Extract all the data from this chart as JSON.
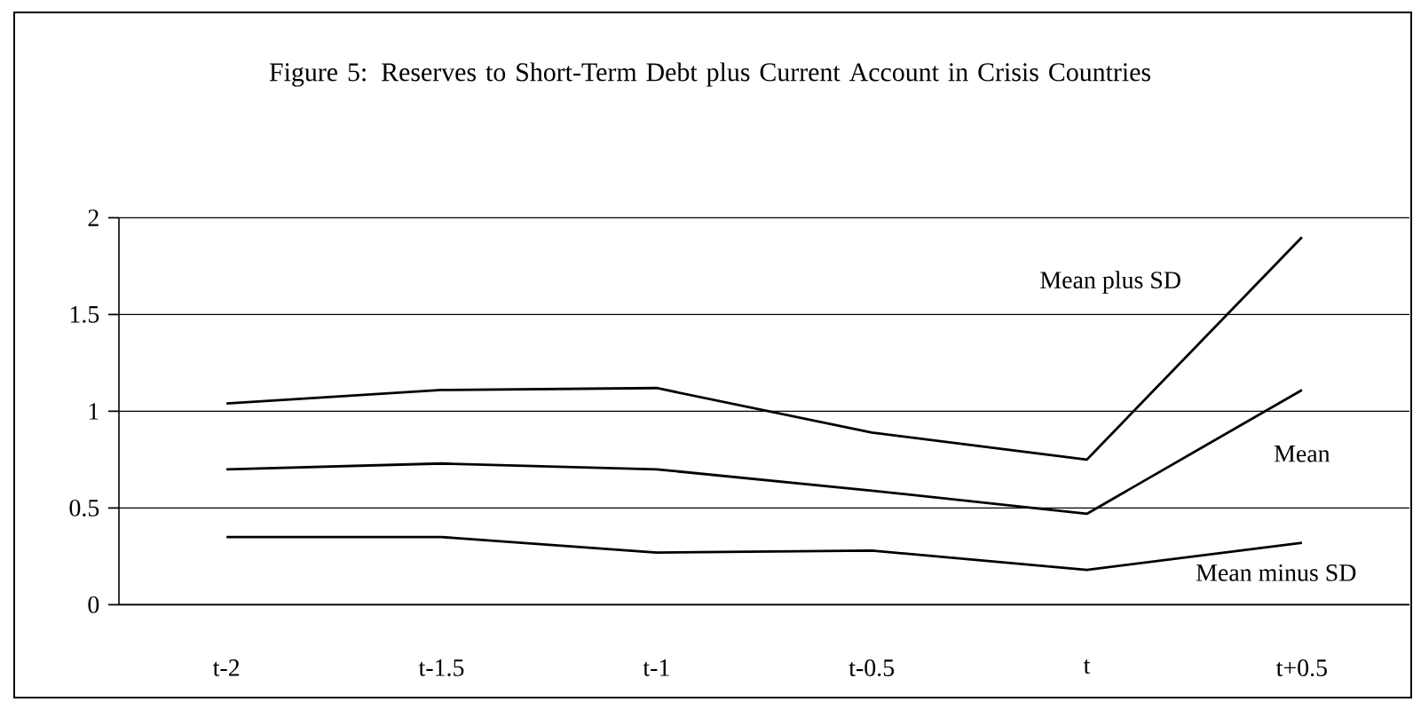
{
  "chart_data": {
    "type": "line",
    "title": "Figure 5: Reserves to Short-Term Debt plus Current Account in Crisis Countries",
    "categories": [
      "t-2",
      "t-1.5",
      "t-1",
      "t-0.5",
      "t",
      "t+0.5"
    ],
    "series": [
      {
        "name": "Mean plus SD",
        "color": "#000000",
        "values": [
          1.04,
          1.11,
          1.12,
          0.89,
          0.75,
          1.9
        ]
      },
      {
        "name": "Mean",
        "color": "#000000",
        "values": [
          0.7,
          0.73,
          0.7,
          0.59,
          0.47,
          1.11
        ]
      },
      {
        "name": "Mean minus SD",
        "color": "#000000",
        "values": [
          0.35,
          0.35,
          0.27,
          0.28,
          0.18,
          0.32
        ]
      }
    ],
    "ylim": [
      0,
      2
    ],
    "yticks": [
      0,
      0.5,
      1,
      1.5,
      2
    ],
    "grid": "y",
    "legend": false,
    "marker": "none",
    "line_style": "solid"
  }
}
